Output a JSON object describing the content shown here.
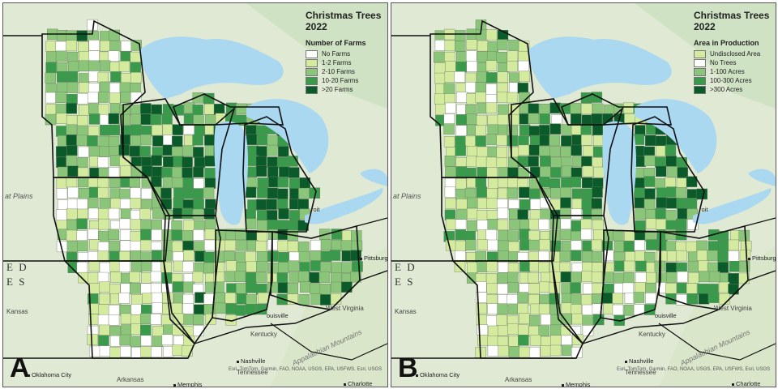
{
  "panels": [
    {
      "letter": "A",
      "map_title": "Christmas Trees\n2022",
      "legend_title": "Number of Farms",
      "legend": [
        {
          "label": "No Farms",
          "color": "#ffffff"
        },
        {
          "label": "1-2 Farms",
          "color": "#d4ea9f"
        },
        {
          "label": "2-10 Farms",
          "color": "#8bc57a"
        },
        {
          "label": "10-20 Farms",
          "color": "#3a9a4c"
        },
        {
          "label": ">20 Farms",
          "color": "#0b5a2a"
        }
      ]
    },
    {
      "letter": "B",
      "map_title": "Christmas Trees\n2022",
      "legend_title": "Area in Production",
      "legend": [
        {
          "label": "Undisclosed Area",
          "color": "#d4ea9f"
        },
        {
          "label": "No Trees",
          "color": "#ffffff"
        },
        {
          "label": "1-100 Acres",
          "color": "#8bc57a"
        },
        {
          "label": "100-300 Acres",
          "color": "#3a9a4c"
        },
        {
          "label": ">300 Acres",
          "color": "#0b5a2a"
        }
      ]
    }
  ],
  "basemap_labels": {
    "great_plains": "at Plains",
    "ed": "E D",
    "es": "E S",
    "kansas": "Kansas",
    "oklahoma_city": "Oklahoma City",
    "arkansas": "Arkansas",
    "memphis": "Memphis",
    "nashville": "Nashville",
    "tennessee": "Tennessee",
    "charlotte": "Charlotte",
    "kentucky": "Kentucky",
    "louisville": "ouisville",
    "west_virginia": "West Virginia",
    "pittsburgh": "Pittsburgh",
    "detroit": "roit",
    "appalachian": "Appalachian Mountains",
    "attribution": "Esri, TomTom, Garmin, FAO, NOAA, USGS, EPA, USFWS, Esri, USGS"
  },
  "colors": {
    "water": "#a9d8f0",
    "land_background": "#dfe9d3",
    "state_border": "#111111"
  }
}
